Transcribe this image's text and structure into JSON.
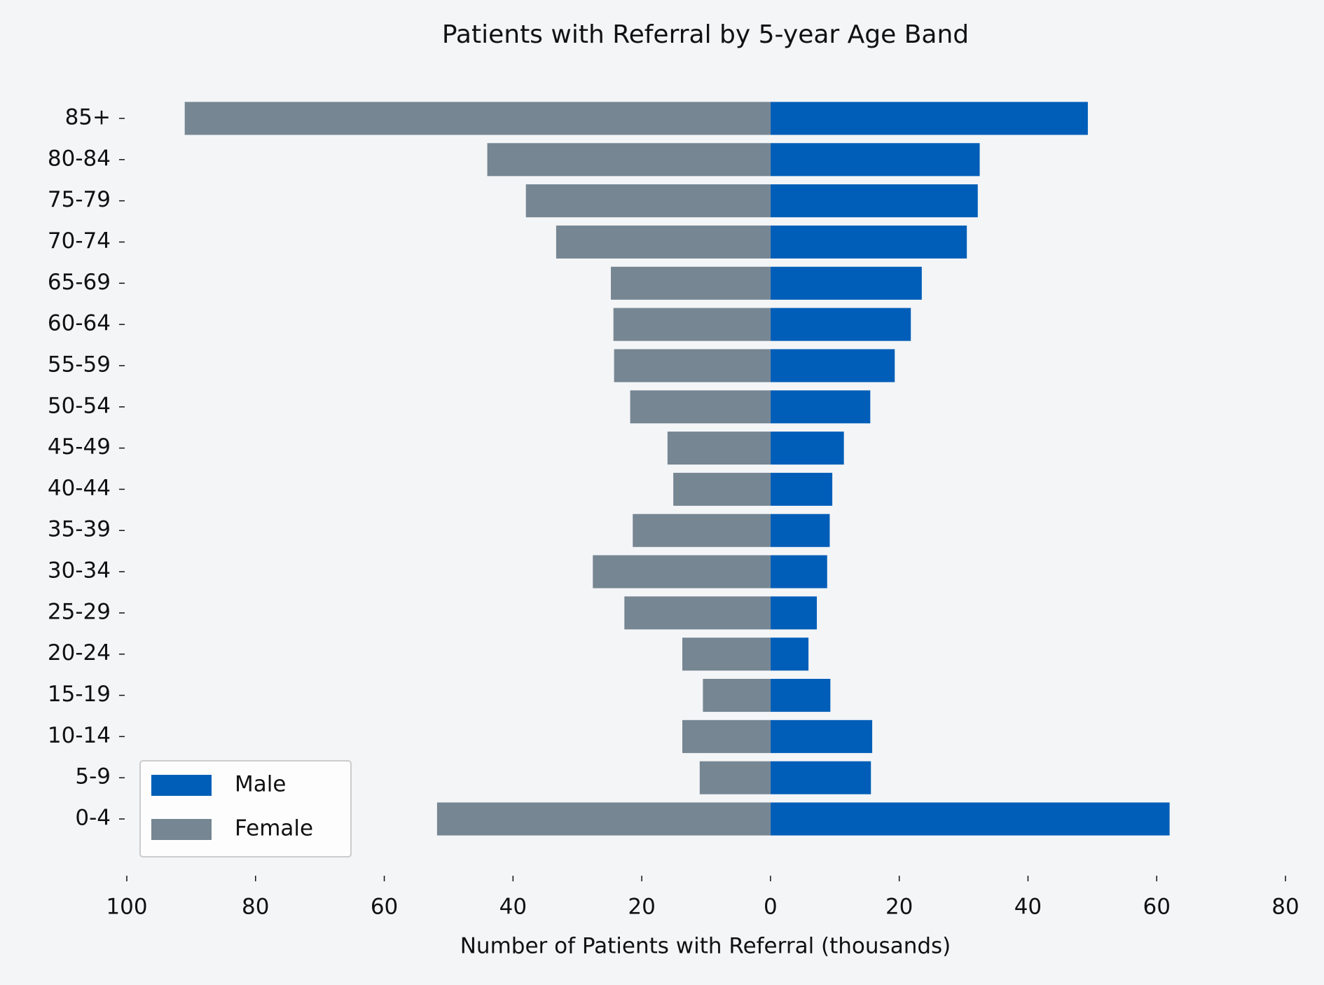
{
  "chart_data": {
    "type": "bar",
    "orientation": "horizontal",
    "title": "Patients with Referral by 5-year Age Band",
    "x_label": "Number of Patients with Referral (thousands)",
    "categories": [
      "0-4",
      "5-9",
      "10-14",
      "15-19",
      "20-24",
      "25-29",
      "30-34",
      "35-39",
      "40-44",
      "45-49",
      "50-54",
      "55-59",
      "60-64",
      "65-69",
      "70-74",
      "75-79",
      "80-84",
      "85+"
    ],
    "series": [
      {
        "name": "Male",
        "color": "#005eb8",
        "values": [
          62,
          15.6,
          15.8,
          9.3,
          5.9,
          7.2,
          8.8,
          9.2,
          9.6,
          11.4,
          15.5,
          19.3,
          21.8,
          23.5,
          30.5,
          32.2,
          32.5,
          49.3
        ]
      },
      {
        "name": "Female",
        "color": "#768692",
        "values": [
          -51.8,
          -11,
          -13.7,
          -10.5,
          -13.7,
          -22.7,
          -27.6,
          -21.4,
          -15.1,
          -16,
          -21.8,
          -24.3,
          -24.4,
          -24.8,
          -33.3,
          -38,
          -44,
          -91
        ]
      }
    ],
    "xlim": [
      -100,
      80
    ],
    "xticks": [
      {
        "value": -100,
        "label": "100"
      },
      {
        "value": -80,
        "label": "80"
      },
      {
        "value": -60,
        "label": "60"
      },
      {
        "value": -40,
        "label": "40"
      },
      {
        "value": -20,
        "label": "20"
      },
      0,
      20,
      40,
      60,
      80
    ],
    "grid": false,
    "legend": "lower left"
  }
}
